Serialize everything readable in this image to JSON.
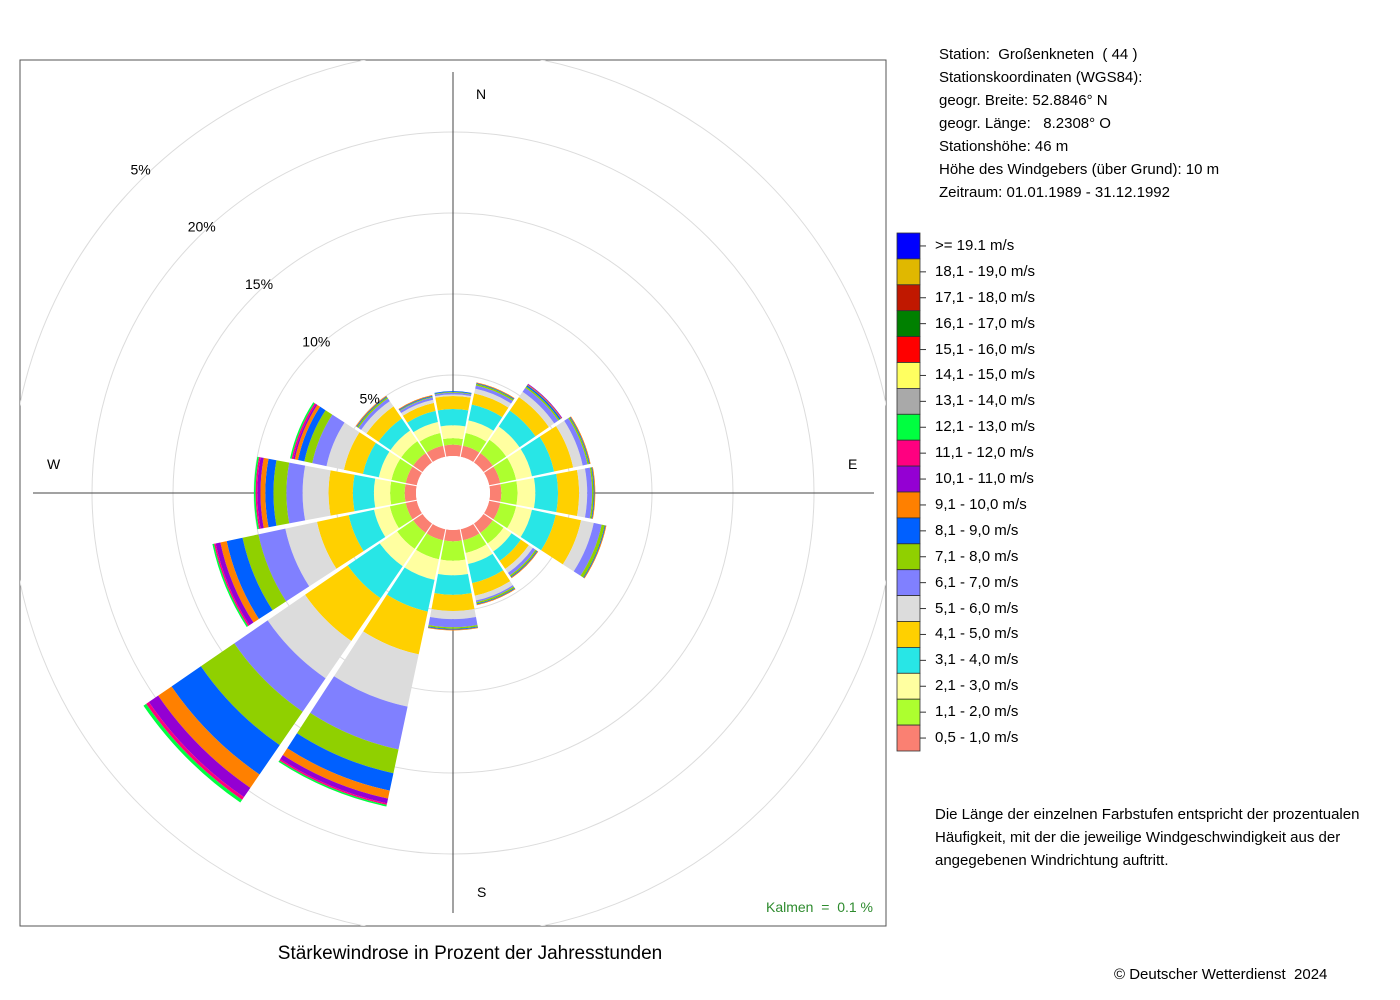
{
  "chart_data": {
    "type": "windrose",
    "title": "Stärkewindrose in Prozent der Jahresstunden",
    "directions": [
      "N",
      "NNO",
      "NO",
      "ONO",
      "O",
      "OSO",
      "SO",
      "SSO",
      "S",
      "SSW",
      "SW",
      "WSW",
      "W",
      "WNW",
      "NW",
      "NNW"
    ],
    "direction_labels": [
      "N",
      "E",
      "S",
      "W"
    ],
    "radial_ticks": [
      "5%",
      "10%",
      "15%",
      "20%",
      "5%"
    ],
    "bins": [
      "0,5 - 1,0 m/s",
      "1,1 - 2,0 m/s",
      "2,1 - 3,0 m/s",
      "3,1 - 4,0 m/s",
      "4,1 - 5,0 m/s",
      "5,1 - 6,0 m/s",
      "6,1 - 7,0 m/s",
      "7,1 - 8,0 m/s",
      "8,1 - 9,0 m/s",
      "9,1 - 10,0 m/s",
      "10,1 - 11,0 m/s",
      "11,1 - 12,0 m/s",
      "12,1 - 13,0 m/s",
      "13,1 - 14,0 m/s",
      "14,1 - 15,0 m/s",
      "15,1 - 16,0 m/s",
      "16,1 - 17,0 m/s",
      "17,1 - 18,0 m/s",
      "18,1 - 19,0 m/s",
      ">= 19.1 m/s"
    ],
    "colors": [
      "#fa8072",
      "#adff2f",
      "#ffffa0",
      "#28e6e6",
      "#ffd000",
      "#dcdcdc",
      "#8080ff",
      "#90d000",
      "#0060ff",
      "#ff8000",
      "#9400d3",
      "#ff0080",
      "#00ff40",
      "#a9a9a9",
      "#ffff60",
      "#ff0000",
      "#008000",
      "#c01800",
      "#e0b800",
      "#0000ff"
    ],
    "legend_order": [
      ">= 19.1 m/s",
      "18,1 - 19,0 m/s",
      "17,1 - 18,0 m/s",
      "16,1 - 17,0 m/s",
      "15,1 - 16,0 m/s",
      "14,1 - 15,0 m/s",
      "13,1 - 14,0 m/s",
      "12,1 - 13,0 m/s",
      "11,1 - 12,0 m/s",
      "10,1 - 11,0 m/s",
      "9,1 - 10,0 m/s",
      "8,1 - 9,0 m/s",
      "7,1 - 8,0 m/s",
      "6,1 - 7,0 m/s",
      "5,1 - 6,0 m/s",
      "4,1 - 5,0 m/s",
      "3,1 - 4,0 m/s",
      "2,1 - 3,0 m/s",
      "1,1 - 2,0 m/s",
      "0,5 - 1,0 m/s"
    ],
    "cumulative_percent": [
      [
        0.7,
        1.1,
        1.9,
        2.9,
        3.7,
        3.8,
        3.9,
        3.95,
        4.0,
        4.0,
        4.0,
        4.0,
        4.0,
        4.0,
        4.0,
        4.0,
        4.0,
        4.0,
        4.0,
        4.0
      ],
      [
        0.7,
        1.5,
        2.3,
        3.3,
        4.0,
        4.3,
        4.5,
        4.6,
        4.65,
        4.7,
        4.7,
        4.7,
        4.7,
        4.7,
        4.7,
        4.7,
        4.7,
        4.7,
        4.7,
        4.7
      ],
      [
        0.7,
        1.7,
        2.7,
        3.9,
        4.9,
        5.3,
        5.6,
        5.7,
        5.8,
        5.85,
        5.9,
        5.9,
        5.9,
        5.9,
        5.9,
        5.9,
        5.9,
        5.9,
        5.9,
        5.9
      ],
      [
        0.7,
        1.7,
        2.7,
        4.1,
        5.3,
        5.9,
        6.2,
        6.3,
        6.35,
        6.4,
        6.4,
        6.4,
        6.4,
        6.4,
        6.4,
        6.4,
        6.4,
        6.4,
        6.4,
        6.4
      ],
      [
        0.7,
        1.7,
        2.8,
        4.2,
        5.5,
        6.0,
        6.3,
        6.4,
        6.45,
        6.5,
        6.5,
        6.5,
        6.5,
        6.5,
        6.5,
        6.5,
        6.5,
        6.5,
        6.5,
        6.5
      ],
      [
        0.7,
        1.7,
        2.7,
        4.2,
        5.8,
        6.6,
        7.1,
        7.3,
        7.35,
        7.4,
        7.4,
        7.4,
        7.4,
        7.4,
        7.4,
        7.4,
        7.4,
        7.4,
        7.4,
        7.4
      ],
      [
        0.7,
        1.5,
        2.1,
        2.8,
        3.4,
        3.7,
        3.9,
        4.0,
        4.05,
        4.1,
        4.1,
        4.1,
        4.1,
        4.1,
        4.1,
        4.1,
        4.1,
        4.1,
        4.1,
        4.1
      ],
      [
        0.7,
        1.5,
        2.2,
        3.4,
        4.2,
        4.5,
        4.6,
        4.7,
        4.75,
        4.8,
        4.8,
        4.8,
        4.8,
        4.8,
        4.8,
        4.8,
        4.8,
        4.8,
        4.8,
        4.8
      ],
      [
        0.7,
        1.9,
        2.8,
        4.0,
        5.0,
        5.5,
        6.0,
        6.1,
        6.15,
        6.2,
        6.2,
        6.2,
        6.2,
        6.2,
        6.2,
        6.2,
        6.2,
        6.2,
        6.2,
        6.2
      ],
      [
        0.7,
        1.9,
        3.2,
        5.2,
        7.9,
        11.2,
        13.9,
        15.4,
        16.5,
        17.0,
        17.3,
        17.4,
        17.5,
        17.5,
        17.5,
        17.5,
        17.5,
        17.5,
        17.5,
        17.5
      ],
      [
        0.7,
        1.9,
        3.2,
        5.6,
        8.8,
        11.6,
        14.1,
        16.6,
        18.8,
        19.8,
        20.5,
        20.7,
        20.9,
        20.9,
        20.9,
        20.9,
        20.9,
        20.9,
        20.9,
        20.9
      ],
      [
        0.7,
        1.7,
        2.7,
        4.3,
        6.3,
        8.3,
        10.0,
        11.0,
        12.0,
        12.4,
        12.7,
        12.8,
        12.9,
        12.9,
        12.9,
        12.9,
        12.9,
        12.9,
        12.9,
        12.9
      ],
      [
        0.7,
        1.6,
        2.6,
        3.9,
        5.4,
        7.0,
        8.0,
        8.8,
        9.3,
        9.6,
        9.8,
        9.9,
        10.0,
        10.0,
        10.0,
        10.0,
        10.0,
        10.0,
        10.0,
        10.0
      ],
      [
        0.7,
        1.6,
        2.4,
        3.4,
        4.6,
        5.7,
        6.6,
        7.1,
        7.5,
        7.7,
        7.8,
        7.9,
        8.0,
        8.0,
        8.0,
        8.0,
        8.0,
        8.0,
        8.0,
        8.0
      ],
      [
        0.7,
        1.6,
        2.4,
        3.3,
        4.2,
        4.6,
        4.8,
        4.9,
        4.95,
        5.0,
        5.0,
        5.0,
        5.0,
        5.0,
        5.0,
        5.0,
        5.0,
        5.0,
        5.0,
        5.0
      ],
      [
        0.7,
        1.5,
        2.2,
        2.9,
        3.4,
        3.6,
        3.75,
        3.8,
        3.85,
        3.9,
        3.9,
        3.9,
        3.9,
        3.9,
        3.9,
        3.9,
        3.9,
        3.9,
        3.9,
        3.9
      ]
    ],
    "calm": "Kalmen  =  0.1 %"
  },
  "station": {
    "lines": [
      "Station:  Großenkneten  ( 44 )",
      "Stationskoordinaten (WGS84):",
      "geogr. Breite: 52.8846° N",
      "geogr. Länge:   8.2308° O",
      "Stationshöhe: 46 m",
      "Höhe des Windgebers (über Grund): 10 m",
      "Zeitraum: 01.01.1989 - 31.12.1992"
    ]
  },
  "note": {
    "lines": [
      "Die Länge der einzelnen Farbstufen entspricht der prozentualen",
      "Häufigkeit, mit der die jeweilige Windgeschwindigkeit aus der",
      "angegebenen Windrichtung auftritt."
    ]
  },
  "copyright": "© Deutscher Wetterdienst  2024"
}
